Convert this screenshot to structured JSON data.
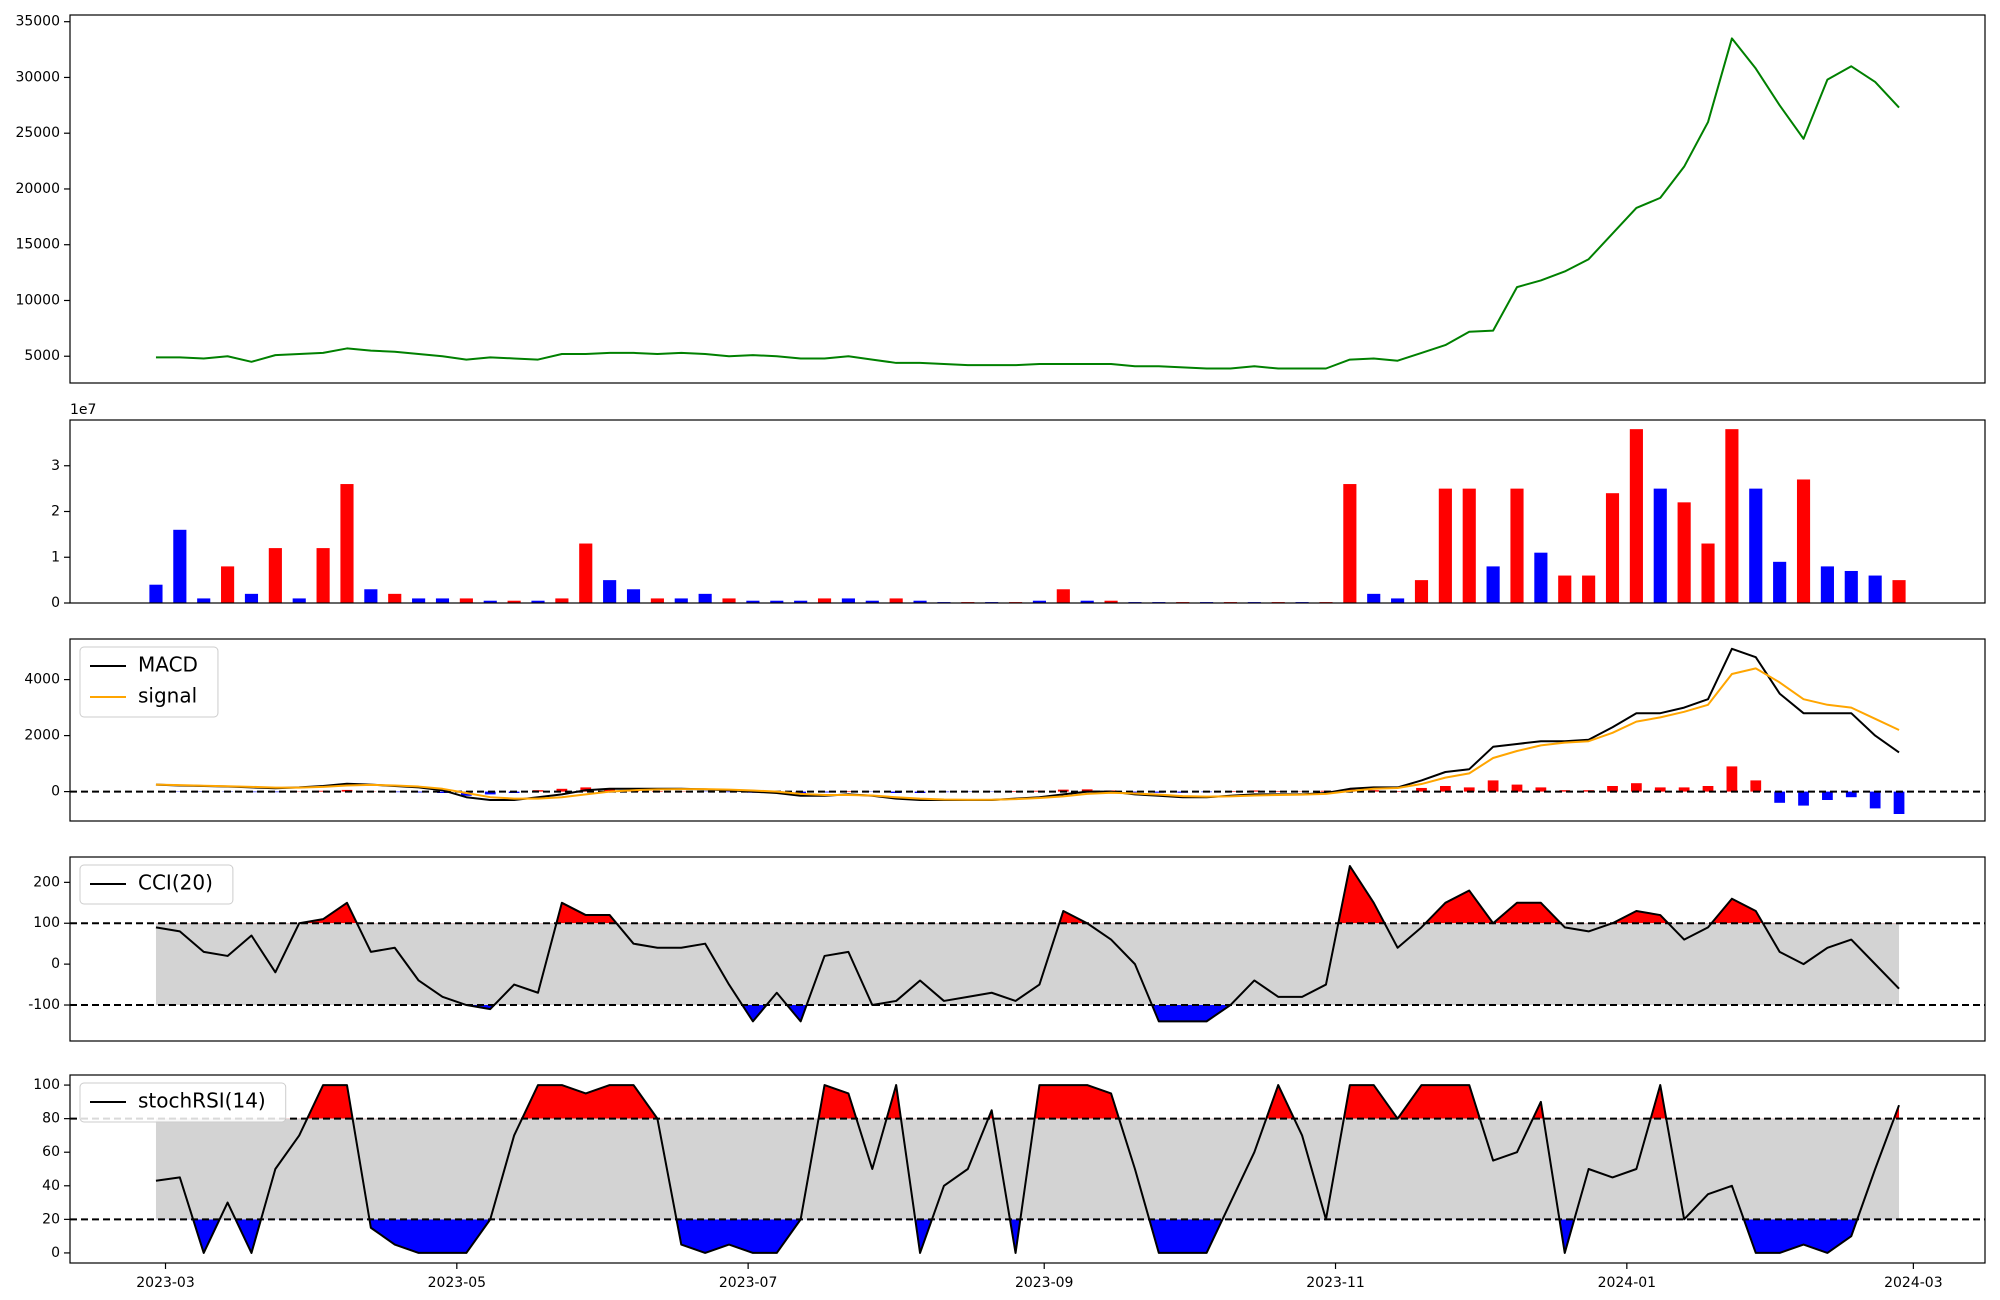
{
  "chart_data": {
    "type": "multi",
    "x": [
      -2,
      3,
      8,
      13,
      18,
      23,
      28,
      33,
      38,
      43,
      48,
      53,
      58,
      63,
      68,
      73,
      78,
      83,
      88,
      93,
      98,
      103,
      108,
      113,
      118,
      123,
      128,
      133,
      138,
      143,
      148,
      153,
      158,
      163,
      168,
      173,
      178,
      183,
      188,
      193,
      198,
      203,
      208,
      213,
      218,
      223,
      228,
      233,
      238,
      243,
      248,
      253,
      258,
      263,
      268,
      273,
      278,
      283,
      288,
      293,
      298,
      303,
      308,
      313,
      318,
      323,
      328,
      333,
      338,
      343,
      348,
      353,
      358,
      363
    ],
    "xlim": [
      -20,
      381
    ],
    "xticks": [
      {
        "value": 0,
        "label": "2023-03"
      },
      {
        "value": 61,
        "label": "2023-05"
      },
      {
        "value": 122,
        "label": "2023-07"
      },
      {
        "value": 184,
        "label": "2023-09"
      },
      {
        "value": 245,
        "label": "2023-11"
      },
      {
        "value": 306,
        "label": "2024-01"
      },
      {
        "value": 366,
        "label": "2024-03"
      }
    ],
    "panels": [
      {
        "type": "line",
        "ylim": [
          2600,
          35600
        ],
        "yticks": [
          5000,
          10000,
          15000,
          20000,
          25000,
          30000,
          35000
        ],
        "series": [
          {
            "color": "green",
            "values": [
              4900,
              4900,
              4800,
              5000,
              4500,
              5100,
              5200,
              5300,
              5700,
              5500,
              5400,
              5200,
              5000,
              4700,
              4900,
              4800,
              4700,
              5200,
              5200,
              5300,
              5300,
              5200,
              5300,
              5200,
              5000,
              5100,
              5000,
              4800,
              4800,
              5000,
              4700,
              4400,
              4400,
              4300,
              4200,
              4200,
              4200,
              4300,
              4300,
              4300,
              4300,
              4100,
              4100,
              4000,
              3900,
              3900,
              4100,
              3900,
              3900,
              3900,
              4700,
              4800,
              4600,
              5300,
              6000,
              7200,
              7300,
              11200,
              11800,
              12600,
              13700,
              16000,
              18300,
              19200,
              22000,
              26000,
              33500,
              30800,
              27500,
              24500,
              29800,
              31000,
              29600,
              27300
            ]
          }
        ]
      },
      {
        "type": "bar",
        "ylim": [
          0,
          4.0
        ],
        "yticks": [
          0,
          1,
          2,
          3
        ],
        "y_offset_label": "1e7",
        "values": [
          0.4,
          1.6,
          0.1,
          0.8,
          0.2,
          1.2,
          0.1,
          1.2,
          2.6,
          0.3,
          0.2,
          0.1,
          0.1,
          0.1,
          0.05,
          0.05,
          0.05,
          0.1,
          1.3,
          0.5,
          0.3,
          0.1,
          0.1,
          0.2,
          0.1,
          0.05,
          0.05,
          0.05,
          0.1,
          0.1,
          0.05,
          0.1,
          0.05,
          0.02,
          0.02,
          0.02,
          0.02,
          0.05,
          0.3,
          0.05,
          0.05,
          0.02,
          0.02,
          0.02,
          0.02,
          0.02,
          0.02,
          0.02,
          0.02,
          0.02,
          2.6,
          0.2,
          0.1,
          0.5,
          2.5,
          2.5,
          0.8,
          2.5,
          1.1,
          0.6,
          0.6,
          2.4,
          3.8,
          2.5,
          2.2,
          1.3,
          3.8,
          2.5,
          0.9,
          2.7,
          0.8,
          0.7,
          0.6,
          0.5
        ],
        "colors": [
          "blue",
          "blue",
          "blue",
          "red",
          "blue",
          "red",
          "blue",
          "red",
          "red",
          "blue",
          "red",
          "blue",
          "blue",
          "red",
          "blue",
          "red",
          "blue",
          "red",
          "red",
          "blue",
          "blue",
          "red",
          "blue",
          "blue",
          "red",
          "blue",
          "blue",
          "blue",
          "red",
          "blue",
          "blue",
          "red",
          "blue",
          "blue",
          "red",
          "blue",
          "red",
          "blue",
          "red",
          "blue",
          "red",
          "blue",
          "blue",
          "red",
          "blue",
          "red",
          "blue",
          "red",
          "blue",
          "red",
          "red",
          "blue",
          "blue",
          "red",
          "red",
          "red",
          "blue",
          "red",
          "blue",
          "red",
          "red",
          "red",
          "red",
          "blue",
          "red",
          "red",
          "red",
          "blue",
          "blue",
          "red",
          "blue",
          "blue",
          "blue",
          "red"
        ]
      },
      {
        "type": "macd",
        "ylim": [
          -1050,
          5450
        ],
        "yticks": [
          0,
          2000,
          4000
        ],
        "hlines": [
          0
        ],
        "legend": "upper left",
        "series": [
          {
            "name": "MACD",
            "color": "black",
            "values": [
              250,
              220,
              200,
              180,
              150,
              120,
              150,
              200,
              280,
              250,
              200,
              150,
              50,
              -200,
              -300,
              -300,
              -200,
              -100,
              50,
              100,
              100,
              100,
              100,
              80,
              50,
              0,
              -50,
              -150,
              -150,
              -100,
              -150,
              -250,
              -300,
              -300,
              -300,
              -300,
              -250,
              -200,
              -100,
              0,
              0,
              -100,
              -150,
              -200,
              -200,
              -150,
              -100,
              -100,
              -100,
              -50,
              100,
              150,
              150,
              400,
              700,
              800,
              1600,
              1700,
              1800,
              1800,
              1850,
              2300,
              2800,
              2800,
              3000,
              3300,
              5100,
              4800,
              3500,
              2800,
              2800,
              2800,
              2000,
              1400
            ]
          },
          {
            "name": "signal",
            "color": "orange",
            "values": [
              250,
              230,
              210,
              190,
              170,
              140,
              140,
              170,
              220,
              240,
              220,
              180,
              100,
              -50,
              -200,
              -250,
              -250,
              -200,
              -100,
              0,
              50,
              80,
              90,
              90,
              70,
              40,
              0,
              -80,
              -120,
              -120,
              -140,
              -200,
              -250,
              -280,
              -290,
              -290,
              -270,
              -230,
              -170,
              -80,
              -40,
              -70,
              -110,
              -160,
              -180,
              -170,
              -140,
              -120,
              -110,
              -80,
              20,
              100,
              130,
              270,
              500,
              650,
              1200,
              1450,
              1650,
              1750,
              1800,
              2100,
              2500,
              2650,
              2850,
              3100,
              4200,
              4400,
              3900,
              3300,
              3100,
              3000,
              2600,
              2200
            ]
          }
        ],
        "histogram": {
          "up_color": "red",
          "down_color": "blue",
          "values": [
            0,
            -10,
            -10,
            -10,
            -20,
            -20,
            10,
            30,
            60,
            10,
            -20,
            -30,
            -50,
            -150,
            -100,
            -50,
            50,
            100,
            150,
            100,
            50,
            20,
            10,
            -10,
            -20,
            -40,
            -50,
            -70,
            -30,
            20,
            -10,
            -50,
            -50,
            -20,
            -10,
            -10,
            20,
            30,
            70,
            80,
            40,
            -30,
            -40,
            -40,
            -20,
            20,
            40,
            20,
            10,
            30,
            80,
            50,
            20,
            130,
            200,
            150,
            400,
            250,
            150,
            50,
            50,
            200,
            300,
            150,
            150,
            200,
            900,
            400,
            -400,
            -500,
            -300,
            -200,
            -600,
            -800
          ]
        }
      },
      {
        "type": "oscillator",
        "ylim": [
          -188,
          262
        ],
        "yticks": [
          -100,
          0,
          100,
          200
        ],
        "thresholds": [
          -100,
          100
        ],
        "band_color": "#d3d3d3",
        "upper_color": "red",
        "lower_color": "blue",
        "legend": "upper left",
        "series": [
          {
            "name": "CCI(20)",
            "color": "black",
            "values": [
              90,
              80,
              30,
              20,
              70,
              -20,
              100,
              110,
              150,
              30,
              40,
              -40,
              -80,
              -100,
              -110,
              -50,
              -70,
              150,
              120,
              120,
              50,
              40,
              40,
              50,
              -50,
              -140,
              -70,
              -140,
              20,
              30,
              -100,
              -90,
              -40,
              -90,
              -80,
              -70,
              -90,
              -50,
              130,
              100,
              60,
              0,
              -140,
              -140,
              -140,
              -100,
              -40,
              -80,
              -80,
              -50,
              240,
              150,
              40,
              90,
              150,
              180,
              100,
              150,
              150,
              90,
              80,
              100,
              130,
              120,
              60,
              90,
              160,
              130,
              30,
              0,
              40,
              60,
              0,
              -60
            ]
          }
        ]
      },
      {
        "type": "oscillator",
        "ylim": [
          -6,
          106
        ],
        "yticks": [
          0,
          20,
          40,
          60,
          80,
          100
        ],
        "thresholds": [
          20,
          80
        ],
        "band_color": "#d3d3d3",
        "upper_color": "red",
        "lower_color": "blue",
        "legend": "upper left",
        "series": [
          {
            "name": "stochRSI(14)",
            "color": "black",
            "values": [
              43,
              45,
              0,
              30,
              0,
              50,
              70,
              100,
              100,
              15,
              5,
              0,
              0,
              0,
              20,
              70,
              100,
              100,
              95,
              100,
              100,
              80,
              5,
              0,
              5,
              0,
              0,
              20,
              100,
              95,
              50,
              100,
              0,
              40,
              50,
              85,
              0,
              100,
              100,
              100,
              95,
              50,
              0,
              0,
              0,
              30,
              60,
              100,
              70,
              20,
              100,
              100,
              80,
              100,
              100,
              100,
              55,
              60,
              90,
              0,
              50,
              45,
              50,
              100,
              20,
              35,
              40,
              0,
              0,
              5,
              0,
              10,
              50,
              88
            ]
          }
        ]
      }
    ]
  }
}
